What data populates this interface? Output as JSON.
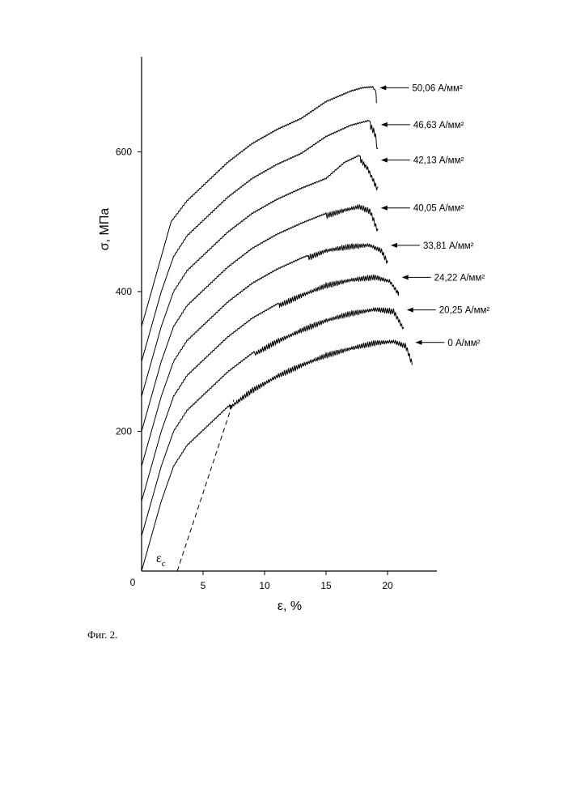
{
  "chart_data": {
    "type": "line",
    "xlabel": "ε, %",
    "ylabel": "σ, МПа",
    "xlim": [
      0,
      24
    ],
    "ylim": [
      0,
      740
    ],
    "x_ticks": [
      0,
      5,
      10,
      15,
      20
    ],
    "y_ticks": [
      200,
      400,
      600
    ],
    "origin_label": "0",
    "curves_offset_vertically": true,
    "series": [
      {
        "name": "0 А/мм²",
        "offset": 0,
        "x": [
          0,
          0.8,
          1.6,
          2.6,
          3.7,
          5.2,
          7.0,
          9.0,
          11.0,
          13.0,
          15.0,
          17.0,
          19.0,
          20.5,
          21.5,
          22.0
        ],
        "y": [
          0,
          50,
          100,
          150,
          180,
          205,
          235,
          262,
          282,
          298,
          312,
          322,
          330,
          332,
          325,
          300
        ],
        "serration_start": 7.2,
        "end_x": 22.0,
        "end_y": 295
      },
      {
        "name": "20,25 А/мм²",
        "offset": 50,
        "x": [
          0,
          0.8,
          1.6,
          2.6,
          3.7,
          5.2,
          7.0,
          9.0,
          11.0,
          13.0,
          15.0,
          17.0,
          19.0,
          20.5,
          21.3
        ],
        "y": [
          0,
          50,
          100,
          150,
          180,
          205,
          235,
          262,
          282,
          298,
          312,
          322,
          328,
          325,
          300
        ],
        "serration_start": 9.2,
        "end_x": 21.3,
        "end_y": 298
      },
      {
        "name": "24,22 А/мм²",
        "offset": 100,
        "x": [
          0,
          0.8,
          1.6,
          2.6,
          3.7,
          5.2,
          7.0,
          9.0,
          11.0,
          13.0,
          15.0,
          17.0,
          19.0,
          20.2,
          20.9
        ],
        "y": [
          0,
          50,
          100,
          150,
          180,
          205,
          235,
          262,
          282,
          298,
          312,
          320,
          324,
          318,
          300
        ],
        "serration_start": 11.2,
        "end_x": 20.9,
        "end_y": 300
      },
      {
        "name": "33,81 А/мм²",
        "offset": 150,
        "x": [
          0,
          0.8,
          1.6,
          2.6,
          3.7,
          5.2,
          7.0,
          9.0,
          11.0,
          13.0,
          15.0,
          17.0,
          18.5,
          19.5,
          20.0
        ],
        "y": [
          0,
          50,
          100,
          150,
          180,
          205,
          235,
          262,
          282,
          298,
          312,
          318,
          320,
          312,
          295
        ],
        "serration_start": 13.5,
        "end_x": 20.0,
        "end_y": 292
      },
      {
        "name": "40,05 А/мм²",
        "offset": 200,
        "x": [
          0,
          0.8,
          1.6,
          2.6,
          3.7,
          5.2,
          7.0,
          9.0,
          11.0,
          13.0,
          15.0,
          16.5,
          17.7,
          18.6,
          19.2
        ],
        "y": [
          0,
          50,
          100,
          150,
          180,
          205,
          235,
          262,
          282,
          298,
          312,
          320,
          325,
          318,
          290
        ],
        "serration_start": 15.0,
        "end_x": 19.2,
        "end_y": 288
      },
      {
        "name": "42,13 А/мм²",
        "offset": 250,
        "x": [
          0,
          0.8,
          1.6,
          2.6,
          3.7,
          5.2,
          7.0,
          9.0,
          11.0,
          13.0,
          15.0,
          16.5,
          17.7,
          18.4,
          19.2
        ],
        "y": [
          0,
          50,
          100,
          150,
          180,
          205,
          235,
          262,
          282,
          298,
          312,
          335,
          345,
          330,
          300
        ],
        "serration_start": 17.8,
        "end_x": 19.2,
        "end_y": 300
      },
      {
        "name": "46,63 А/мм²",
        "offset": 300,
        "x": [
          0,
          0.8,
          1.6,
          2.6,
          3.7,
          5.2,
          7.0,
          9.0,
          11.0,
          13.0,
          15.0,
          17.0,
          18.5,
          19.0,
          19.2
        ],
        "y": [
          0,
          50,
          100,
          150,
          180,
          205,
          235,
          262,
          282,
          298,
          322,
          338,
          345,
          330,
          305
        ],
        "serration_start": 18.6,
        "end_x": 19.2,
        "end_y": 305
      },
      {
        "name": "50,06 А/мм²",
        "offset": 350,
        "x": [
          0,
          0.8,
          1.6,
          2.4,
          3.7,
          5.2,
          7.0,
          9.0,
          11.0,
          13.0,
          15.0,
          17.0,
          18.0,
          18.8,
          19.1
        ],
        "y": [
          0,
          50,
          100,
          150,
          180,
          205,
          235,
          262,
          282,
          298,
          322,
          337,
          342,
          343,
          335
        ],
        "serration_start": 19.05,
        "end_x": 19.1,
        "end_y": 320
      }
    ],
    "annotation": {
      "label": "ε",
      "subscript": "с",
      "dashed_line": {
        "x": [
          2.9,
          7.5
        ],
        "y": [
          0,
          245
        ]
      }
    }
  },
  "caption": "Фиг. 2."
}
